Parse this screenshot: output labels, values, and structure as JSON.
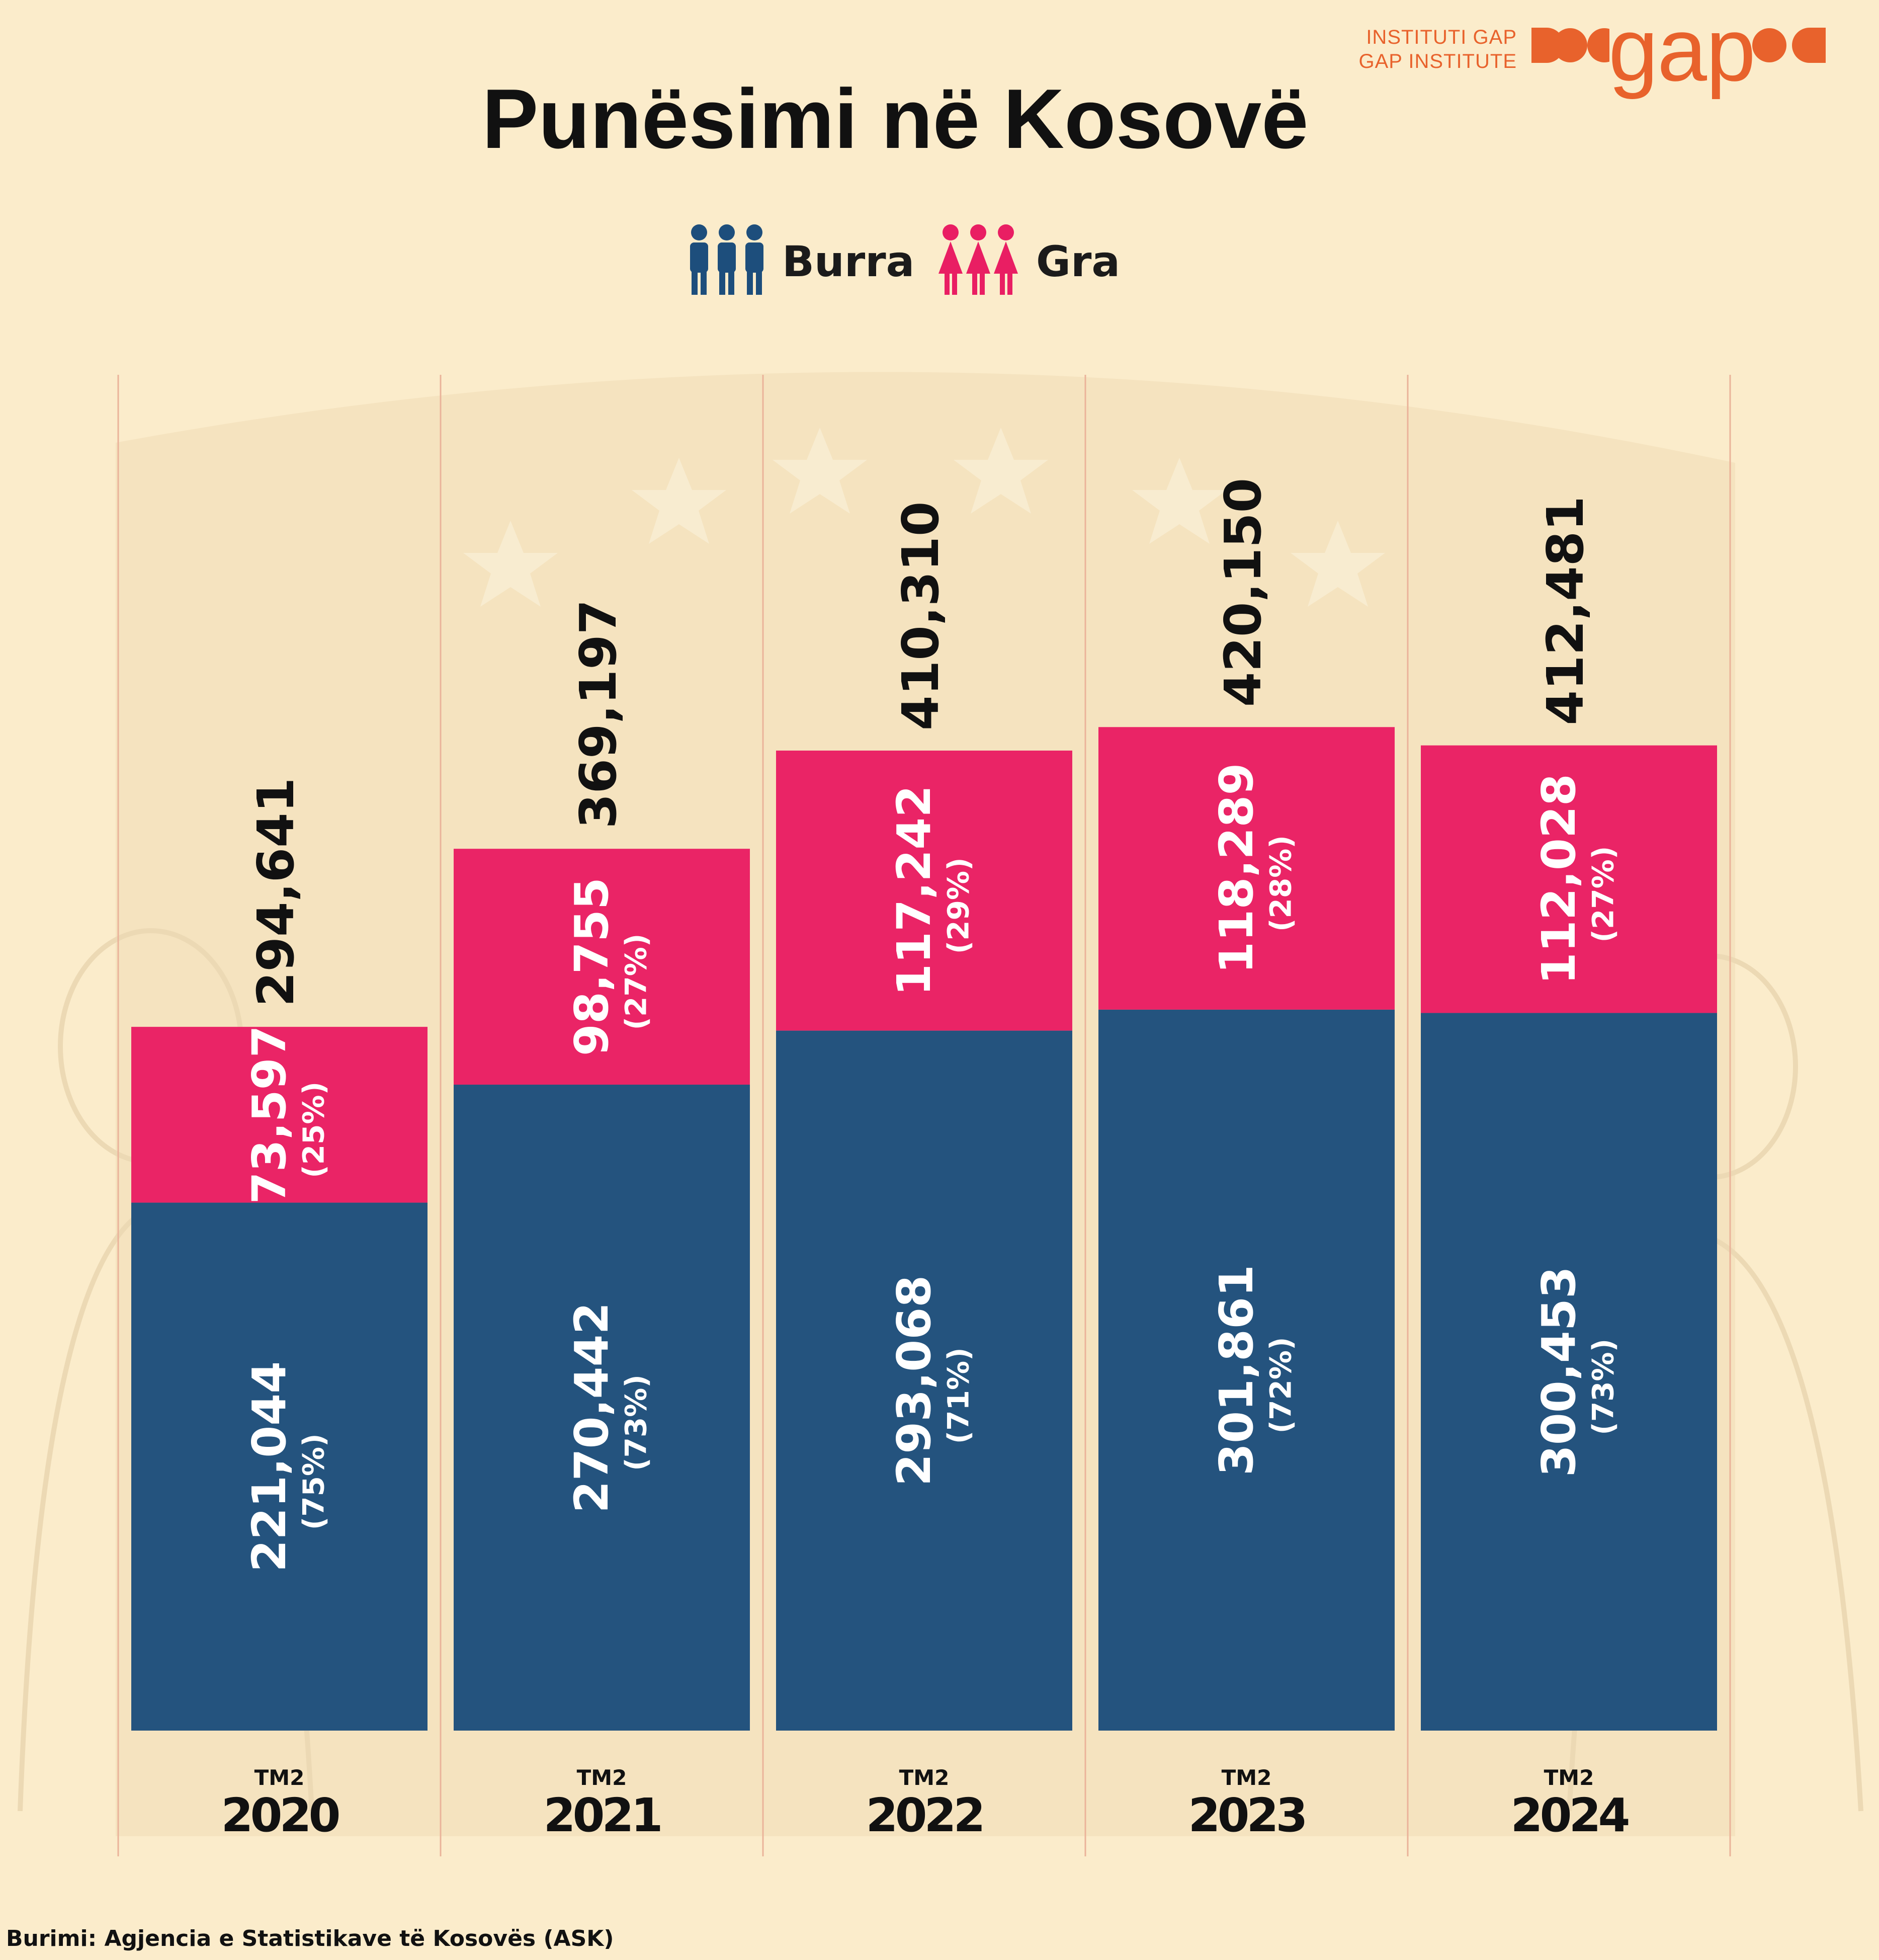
{
  "logo": {
    "line1": "INSTITUTI GAP",
    "line2": "GAP INSTITUTE",
    "wordmark": "gap",
    "color": "#e8622c"
  },
  "title": "Punësimi në Kosovë",
  "legend": [
    {
      "label": "Burra",
      "icon": "men-group-icon",
      "color": "#1d4e7c"
    },
    {
      "label": "Gra",
      "icon": "women-group-icon",
      "color": "#e91e63"
    }
  ],
  "source": "Burimi: Agjencia e Statistikave të Kosovës (ASK)",
  "chart_data": {
    "type": "bar",
    "stacked": true,
    "title": "Punësimi në Kosovë",
    "categories": [
      "2020",
      "2021",
      "2022",
      "2023",
      "2024"
    ],
    "category_prefix": "TM2",
    "series": [
      {
        "name": "Burra",
        "color": "#1d4e7c",
        "values": [
          221044,
          270442,
          293068,
          301861,
          300453
        ],
        "labels": [
          "221,044",
          "270,442",
          "293,068",
          "301,861",
          "300,453"
        ],
        "shares": [
          "(75%)",
          "(73%)",
          "(71%)",
          "(72%)",
          "(73%)"
        ]
      },
      {
        "name": "Gra",
        "color": "#e91e63",
        "values": [
          73597,
          98755,
          117242,
          118289,
          112028
        ],
        "labels": [
          "73,597",
          "98,755",
          "117,242",
          "118,289",
          "112,028"
        ],
        "shares": [
          "(25%)",
          "(27%)",
          "(29%)",
          "(28%)",
          "(27%)"
        ]
      }
    ],
    "totals": [
      294641,
      369197,
      410310,
      420150,
      412481
    ],
    "total_labels": [
      "294,641",
      "369,197",
      "410,310",
      "420,150",
      "412,481"
    ],
    "ylim": [
      0,
      436000
    ],
    "grid": false,
    "legend_position": "top-center"
  }
}
